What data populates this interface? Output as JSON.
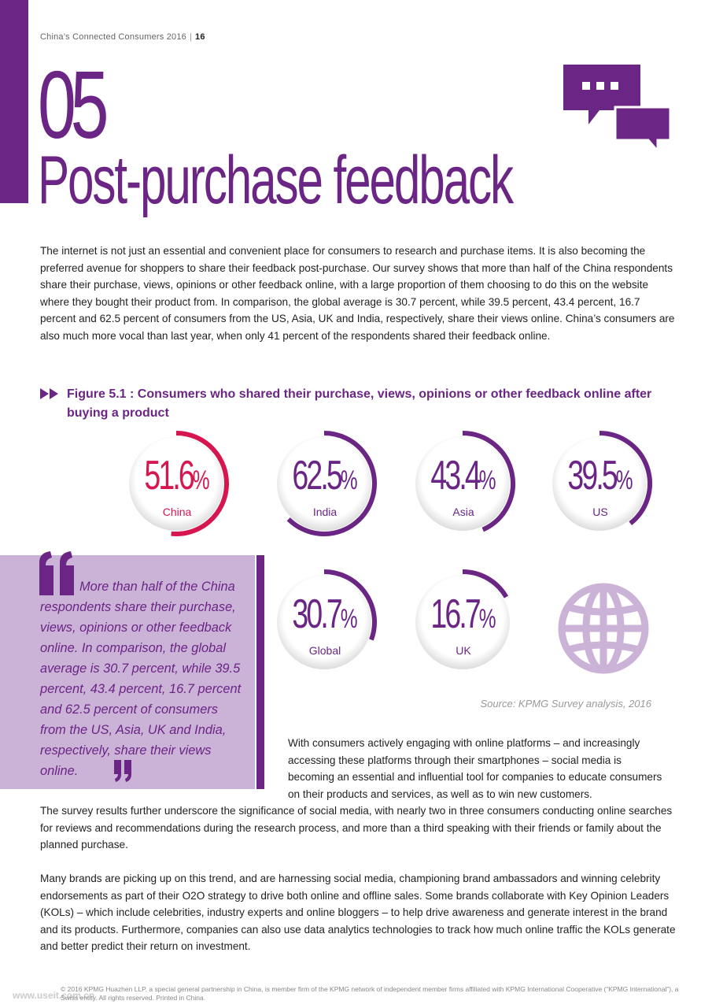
{
  "header": {
    "publication": "China’s Connected Consumers 2016",
    "page_number": "16"
  },
  "chapter": {
    "number": "05",
    "title": "Post-purchase feedback"
  },
  "intro_paragraph": "The internet is not just an essential and convenient place for consumers to research and purchase items. It is also becoming the preferred avenue for shoppers to share their feedback post-purchase. Our survey shows that more than half of the China respondents share their purchase, views, opinions or other feedback online, with a large proportion of them choosing to do this on the website where they bought their product from. In comparison, the global average is 30.7 percent, while 39.5 percent, 43.4 percent, 16.7 percent and 62.5 percent of consumers from the US, Asia, UK and India, respectively, share their views online. China’s consumers are also much more vocal than last year, when only 41 percent of the respondents shared their feedback online.",
  "figure": {
    "title": "Figure 5.1 : Consumers who shared their purchase, views, opinions or other feedback online after buying a product",
    "source": "Source: KPMG Survey analysis, 2016"
  },
  "chart_data": {
    "type": "pie",
    "categories": [
      "China",
      "India",
      "Asia",
      "US",
      "Global",
      "UK"
    ],
    "values": [
      51.6,
      62.5,
      43.4,
      39.5,
      30.7,
      16.7
    ],
    "value_labels": [
      "51.6",
      "62.5",
      "43.4",
      "39.5",
      "30.7",
      "16.7"
    ],
    "unit": "%",
    "colors": {
      "China": "#d6174f",
      "others": "#6b2585",
      "track": "#ffffff"
    }
  },
  "quote": {
    "text": "More than half of the China respondents share their purchase, views, opinions or other feedback online. In comparison, the global average is 30.7 percent, while 39.5 percent, 43.4 percent, 16.7 percent and 62.5 percent of consumers from the US, Asia, UK and India, respectively, share their views online."
  },
  "paragraph_2": "With consumers actively engaging with online platforms – and increasingly accessing these platforms through their smartphones – social media is becoming an essential and influential tool for companies to educate consumers on their products and services, as well as to win new customers.",
  "paragraph_3": "The survey results further underscore the significance of social media, with nearly two in three consumers conducting online searches for reviews and recommendations during the research process, and more than a third speaking with their friends or family about the planned purchase.",
  "paragraph_4": "Many brands are picking up on this trend, and are harnessing social media, championing brand ambassadors and winning celebrity endorsements as part of their O2O strategy to drive both online and offline sales. Some brands collaborate with Key Opinion Leaders (KOLs) – which include celebrities, industry experts and online bloggers – to help drive awareness and generate interest in the brand and its products. Furthermore, companies can also use data analytics technologies to track how much online traffic the KOLs generate and better predict their return on investment.",
  "footer": "© 2016 KPMG Huazhen LLP, a special general partnership in China, is member firm of the KPMG network of independent member firms affiliated with KPMG International Cooperative (“KPMG International”), a Swiss entity. All rights reserved. Printed in China.",
  "watermark": "www.useit.com.cn",
  "icons": [
    "chat-bubbles-icon",
    "double-arrow-icon",
    "open-quote-icon",
    "close-quote-icon",
    "globe-icon"
  ],
  "colors": {
    "brand_purple": "#6b2585",
    "light_purple": "#cbb2d7",
    "accent_red": "#d6174f"
  }
}
